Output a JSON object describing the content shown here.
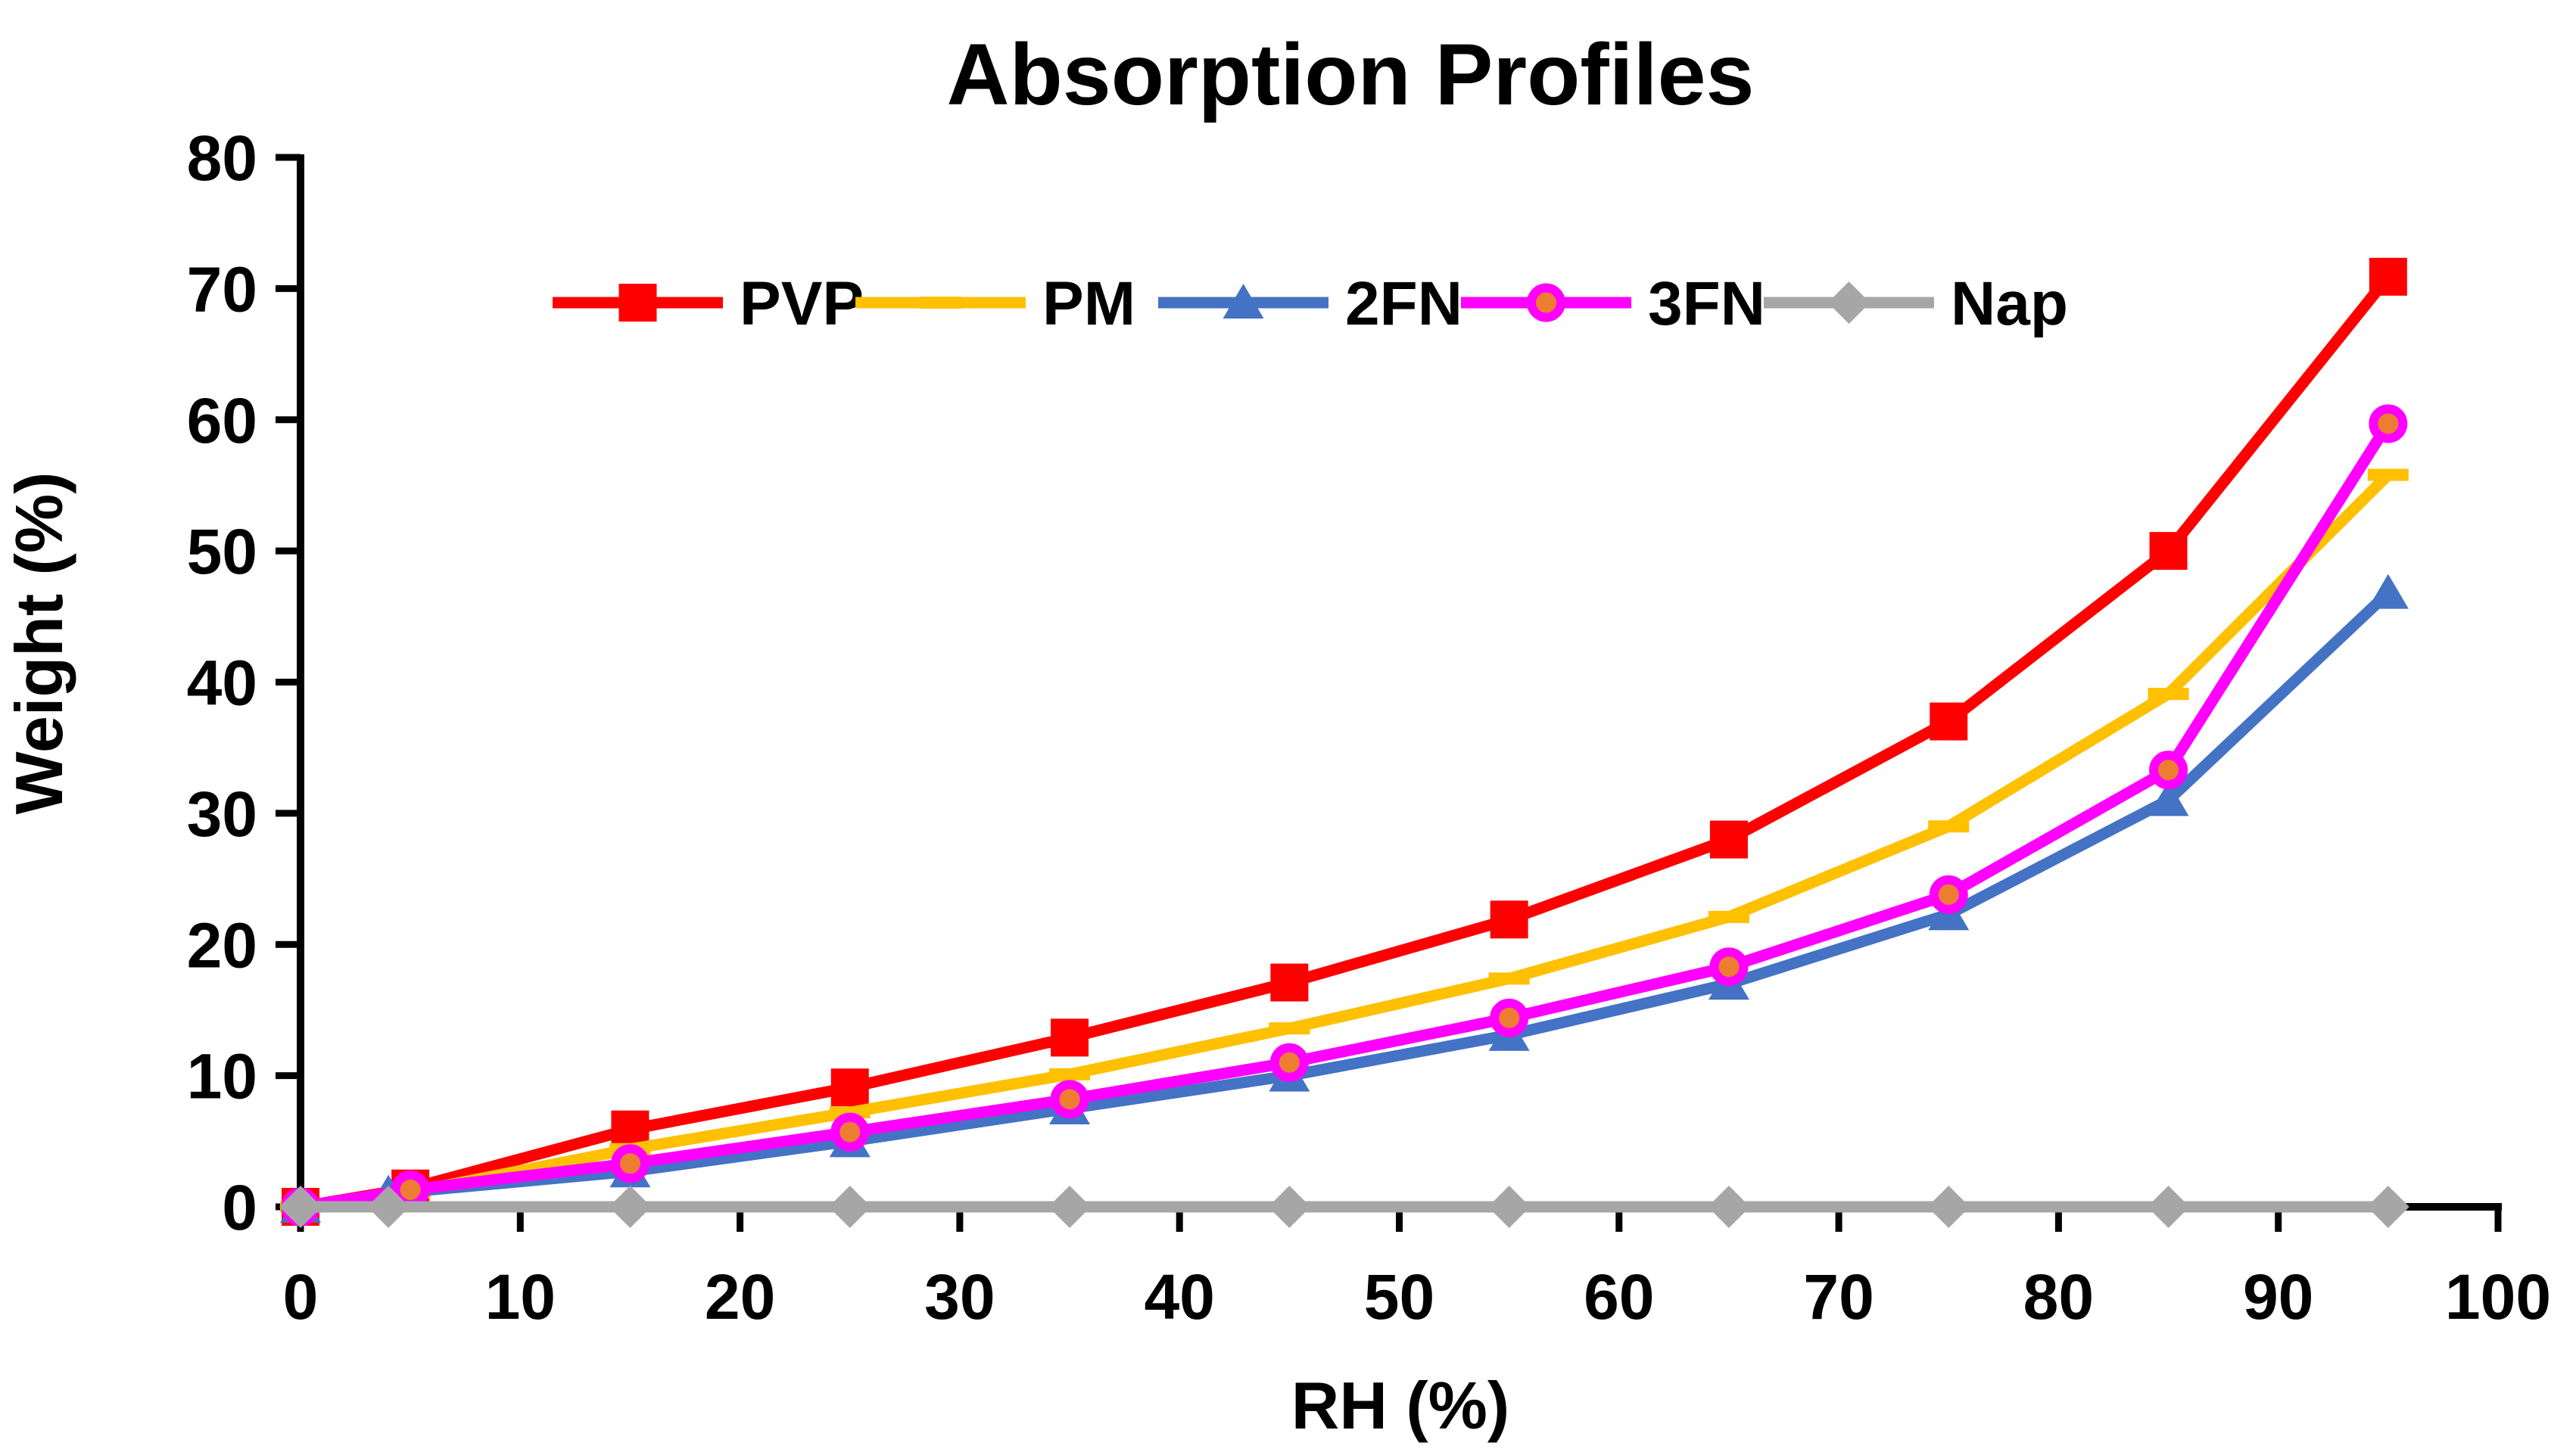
{
  "chart_data": {
    "type": "line",
    "title": "Absorption Profiles",
    "xlabel": "RH (%)",
    "ylabel": "Weight (%)",
    "xlim": [
      0,
      100
    ],
    "ylim": [
      0,
      80
    ],
    "x_ticks": [
      0,
      10,
      20,
      30,
      40,
      50,
      60,
      70,
      80,
      90,
      100
    ],
    "y_ticks": [
      0,
      10,
      20,
      30,
      40,
      50,
      60,
      70,
      80
    ],
    "grid": false,
    "legend_position": "top-inside-row",
    "axis_color": "#000000",
    "text_color": "#000000",
    "background_color": "#ffffff",
    "series": [
      {
        "name": "PVP",
        "color": "#FF0000",
        "marker": "square",
        "x": [
          0,
          5,
          15,
          25,
          35,
          45,
          55,
          65,
          75,
          85,
          95
        ],
        "y": [
          0,
          1.4,
          5.9,
          9.1,
          12.9,
          17.1,
          21.9,
          28.0,
          37.0,
          50.0,
          70.9
        ]
      },
      {
        "name": "PM",
        "color": "#FFC000",
        "marker": "dash",
        "x": [
          0,
          5,
          15,
          25,
          35,
          45,
          55,
          65,
          75,
          85,
          95
        ],
        "y": [
          0,
          1.1,
          4.4,
          7.2,
          10.1,
          13.6,
          17.4,
          22.1,
          29.0,
          39.1,
          55.8
        ]
      },
      {
        "name": "2FN",
        "color": "#4472C4",
        "marker": "triangle",
        "x": [
          0,
          4,
          15,
          25,
          35,
          45,
          55,
          65,
          75,
          85,
          95
        ],
        "y": [
          0,
          1.0,
          2.7,
          5.0,
          7.5,
          10.0,
          13.1,
          17.0,
          22.3,
          31.0,
          46.8
        ]
      },
      {
        "name": "3FN",
        "color": "#FF00FF",
        "marker": "circle",
        "marker_fill": "#ED7D31",
        "x": [
          0,
          5,
          15,
          25,
          35,
          45,
          55,
          65,
          75,
          85,
          95
        ],
        "y": [
          0,
          1.3,
          3.3,
          5.7,
          8.2,
          11.0,
          14.4,
          18.3,
          23.8,
          33.3,
          59.7
        ]
      },
      {
        "name": "Nap",
        "color": "#A6A6A6",
        "marker": "diamond",
        "x": [
          0,
          4,
          15,
          25,
          35,
          45,
          55,
          65,
          75,
          85,
          95
        ],
        "y": [
          0,
          0,
          0,
          0,
          0,
          0,
          0,
          0,
          0,
          0,
          0
        ]
      }
    ]
  }
}
